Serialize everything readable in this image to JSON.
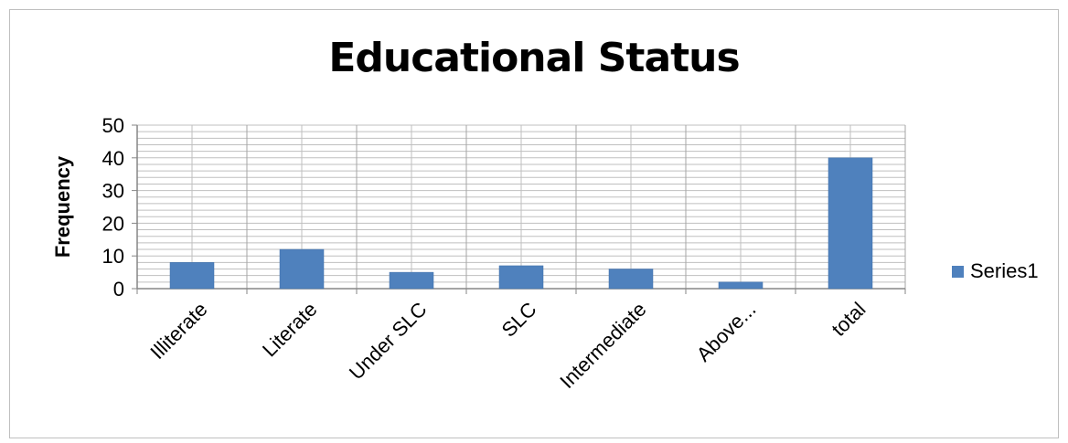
{
  "chart_data": {
    "type": "bar",
    "title": "Educational Status",
    "xlabel": "",
    "ylabel": "Frequency",
    "categories": [
      "Illiterate",
      "Literate",
      "Under SLC",
      "SLC",
      "Intermediate",
      "Above...",
      "total"
    ],
    "series": [
      {
        "name": "Series1",
        "values": [
          8,
          12,
          5,
          7,
          6,
          2,
          40
        ]
      }
    ],
    "ylim": [
      0,
      50
    ],
    "yticks": [
      0,
      10,
      20,
      30,
      40,
      50
    ],
    "grid": true,
    "legend_position": "right",
    "colors": {
      "bar": "#4f81bd",
      "grid": "#bfbfbf",
      "axis": "#868686"
    }
  }
}
